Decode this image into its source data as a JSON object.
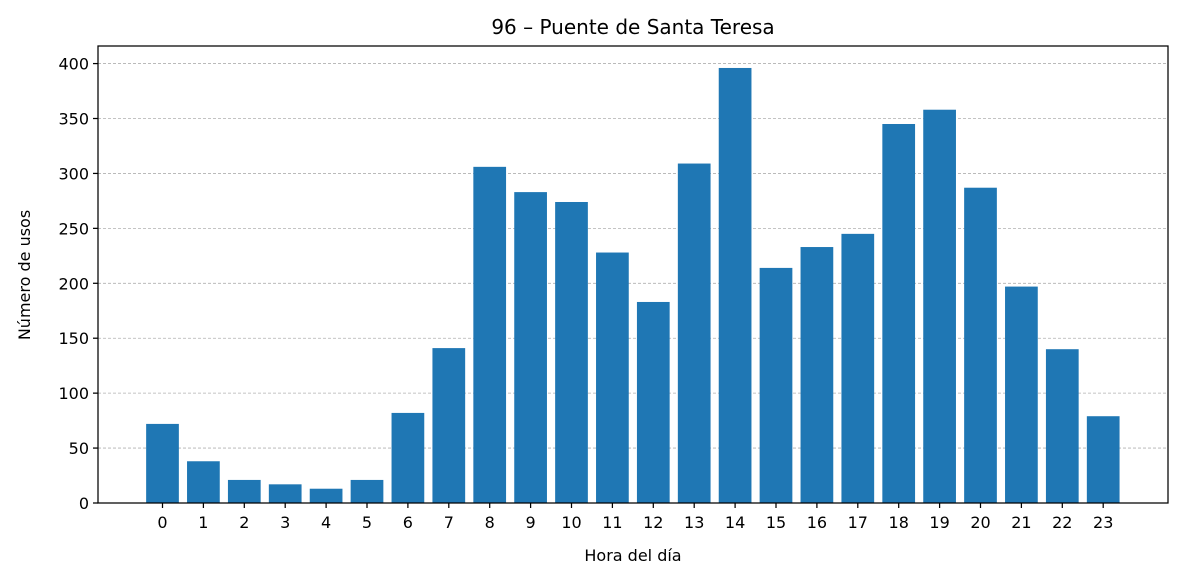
{
  "chart_data": {
    "type": "bar",
    "title": "96 – Puente de Santa Teresa",
    "xlabel": "Hora del día",
    "ylabel": "Número de usos",
    "categories": [
      "0",
      "1",
      "2",
      "3",
      "4",
      "5",
      "6",
      "7",
      "8",
      "9",
      "10",
      "11",
      "12",
      "13",
      "14",
      "15",
      "16",
      "17",
      "18",
      "19",
      "20",
      "21",
      "22",
      "23"
    ],
    "values": [
      72,
      38,
      21,
      17,
      13,
      21,
      82,
      141,
      306,
      283,
      274,
      228,
      183,
      309,
      396,
      214,
      233,
      245,
      345,
      358,
      287,
      197,
      140,
      79
    ],
    "ylim": [
      0,
      416
    ],
    "yticks": [
      "0",
      "50",
      "100",
      "150",
      "200",
      "250",
      "300",
      "350",
      "400"
    ],
    "grid": "y-dashed",
    "bar_color": "#1f77b4"
  }
}
